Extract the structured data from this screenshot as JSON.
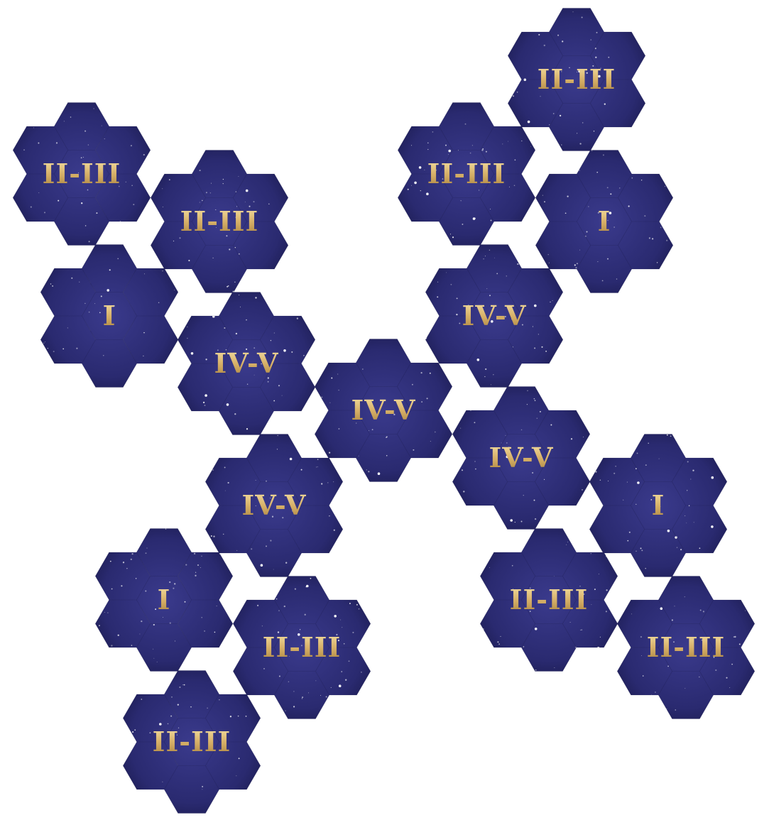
{
  "board": {
    "tiles": [
      {
        "label": "II-III"
      },
      {
        "label": "II-III"
      },
      {
        "label": "I"
      },
      {
        "label": "IV-V"
      },
      {
        "label": "IV-V"
      },
      {
        "label": "IV-V"
      },
      {
        "label": "I"
      },
      {
        "label": "II-III"
      },
      {
        "label": "II-III"
      },
      {
        "label": "II-III"
      },
      {
        "label": "I"
      },
      {
        "label": "IV-V"
      },
      {
        "label": "IV-V"
      },
      {
        "label": "I"
      },
      {
        "label": "II-III"
      },
      {
        "label": "II-III"
      }
    ]
  },
  "colors": {
    "space_dark": "#0a0a2a",
    "space_mid": "#2a2a70",
    "space_light": "#3a3a8c",
    "label_gold": "#d8b26a",
    "label_gold_light": "#f6e3a8",
    "tile_edge": "#ffffff"
  }
}
